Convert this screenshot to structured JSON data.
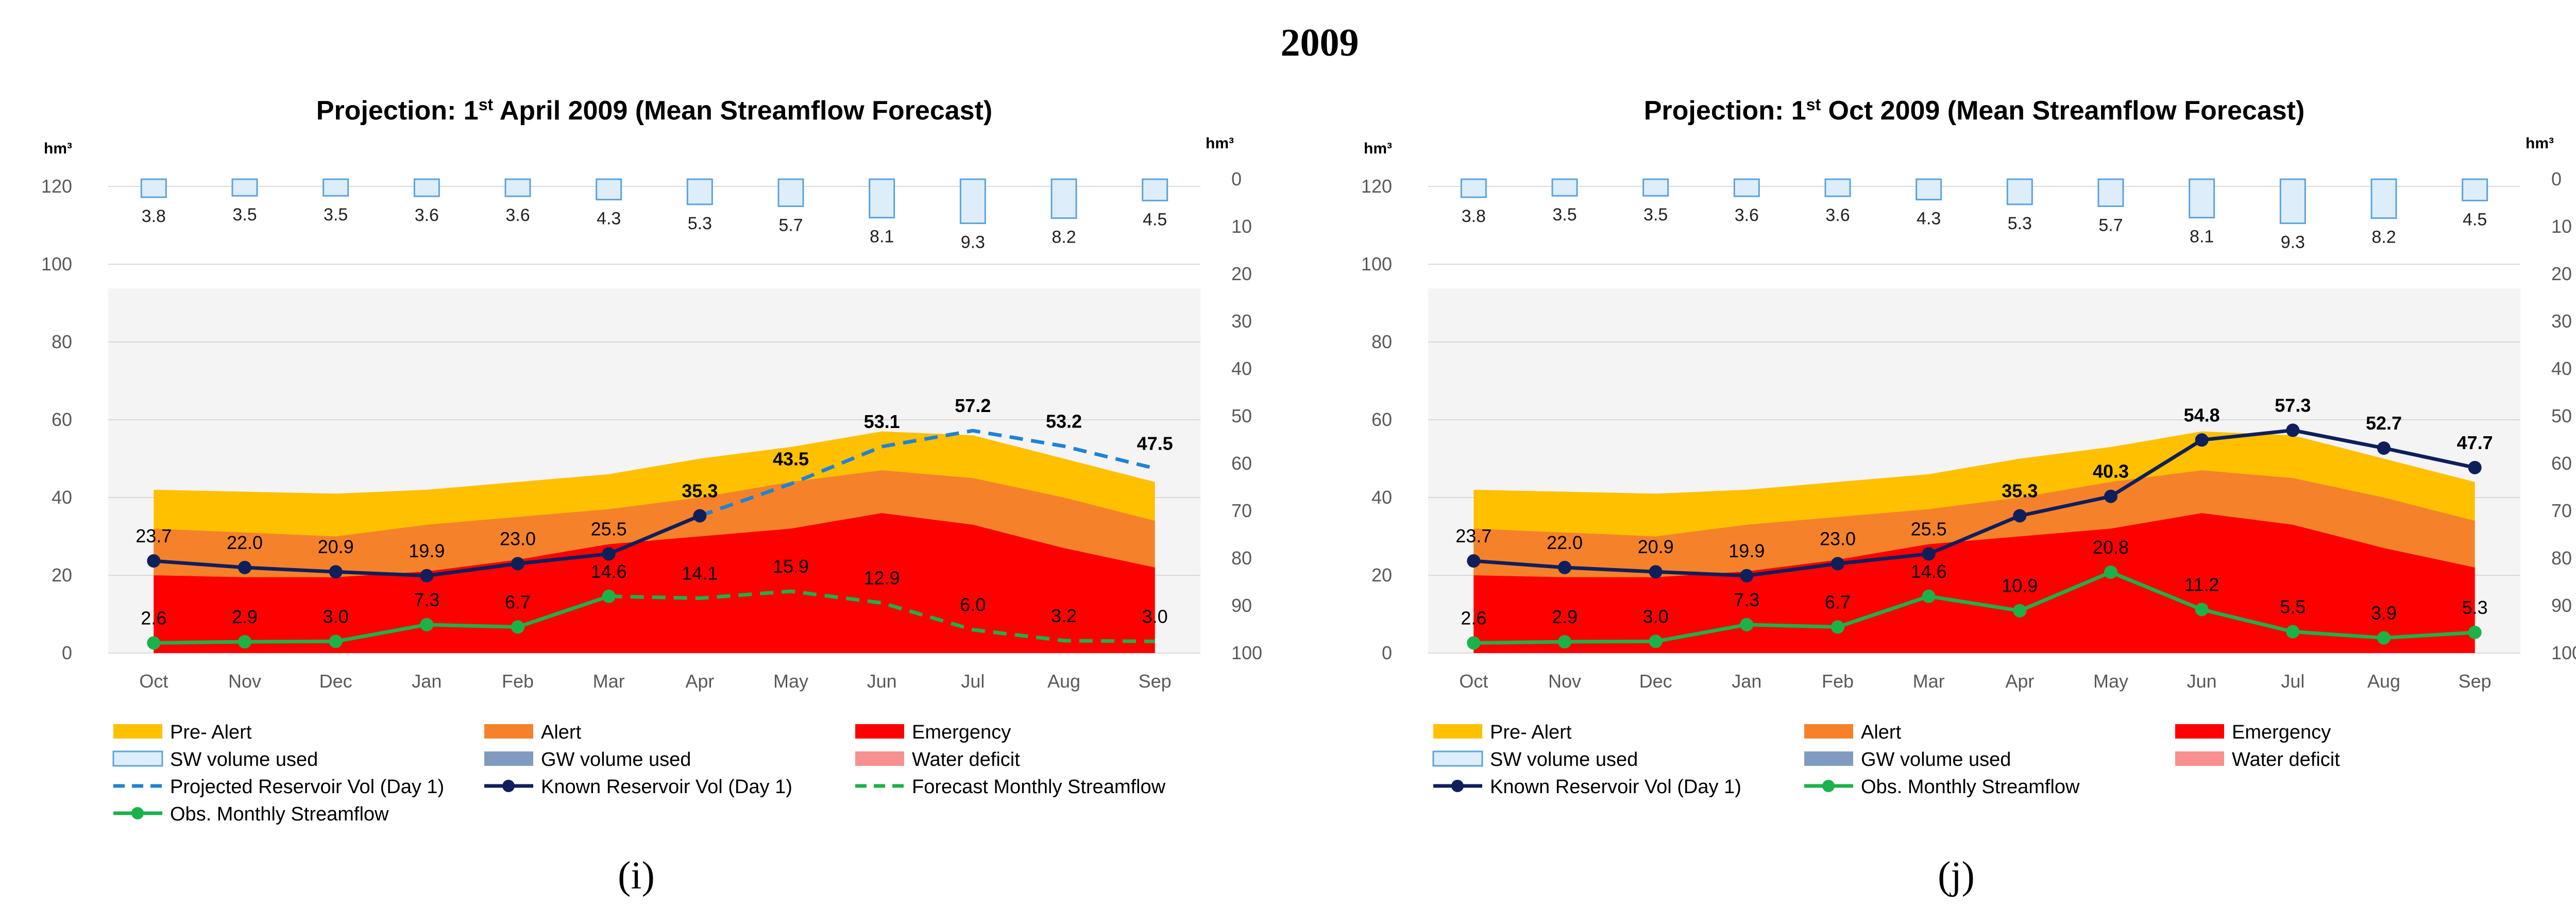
{
  "figure_title": "2009",
  "colors": {
    "pre_alert": "#FFC000",
    "alert": "#F5822A",
    "emergency": "#FF0000",
    "sw_fill": "#DDEEFA",
    "sw_stroke": "#5BA3DC",
    "gw": "#7F9CC0",
    "deficit": "#F89090",
    "known_res": "#0F1F5C",
    "projected_res": "#1F83D4",
    "streamflow": "#1BB24A",
    "plot_bg": "#F4F4F4"
  },
  "chart_data": [
    {
      "panel_label": "(i)",
      "type": "composite",
      "title_prefix": "Projection: 1",
      "title_sup": "st",
      "title_suffix": " April 2009 (Mean Streamflow Forecast)",
      "left_unit": "hm³",
      "right_unit": "hm³",
      "categories": [
        "Oct",
        "Nov",
        "Dec",
        "Jan",
        "Feb",
        "Mar",
        "Apr",
        "May",
        "Jun",
        "Jul",
        "Aug",
        "Sep"
      ],
      "ylim_left": [
        0,
        120
      ],
      "yticks_left": [
        0,
        20,
        40,
        60,
        80,
        100,
        120
      ],
      "ylim_right": [
        100,
        0
      ],
      "yticks_right": [
        0,
        10,
        20,
        30,
        40,
        50,
        60,
        70,
        80,
        90,
        100
      ],
      "threshold_areas": {
        "emergency": [
          20,
          19.5,
          19.5,
          21,
          24,
          28,
          30,
          32,
          36,
          33,
          27,
          22
        ],
        "alert": [
          32,
          31,
          30,
          33,
          35,
          37,
          40,
          44,
          47,
          45,
          40,
          34
        ],
        "pre_alert": [
          42,
          41.5,
          41,
          42,
          44,
          46,
          50,
          53,
          57,
          56,
          50,
          44
        ]
      },
      "sw_volume_used": [
        3.8,
        3.5,
        3.5,
        3.6,
        3.6,
        4.3,
        5.3,
        5.7,
        8.1,
        9.3,
        8.2,
        4.5
      ],
      "known_reservoir_vol": [
        23.7,
        22.0,
        20.9,
        19.9,
        23.0,
        25.5,
        35.3,
        null,
        null,
        null,
        null,
        null
      ],
      "projected_reservoir_vol": [
        null,
        null,
        null,
        null,
        null,
        null,
        35.3,
        43.5,
        53.1,
        57.2,
        53.2,
        47.5
      ],
      "obs_monthly_streamflow": [
        2.6,
        2.9,
        3.0,
        7.3,
        6.7,
        14.6,
        null,
        null,
        null,
        null,
        null,
        null
      ],
      "forecast_monthly_streamflow": [
        null,
        null,
        null,
        null,
        null,
        14.6,
        14.1,
        15.9,
        12.9,
        6.0,
        3.2,
        3.0
      ],
      "reservoir_labels": [
        "23.7",
        "22.0",
        "20.9",
        "19.9",
        "23.0",
        "25.5",
        "35.3",
        "43.5",
        "53.1",
        "57.2",
        "53.2",
        "47.5"
      ],
      "streamflow_labels": [
        "2.6",
        "2.9",
        "3.0",
        "7.3",
        "6.7",
        "14.6",
        "14.1",
        "15.9",
        "12.9",
        "6.0",
        "3.2",
        "3.0"
      ],
      "sw_labels": [
        "3.8",
        "3.5",
        "3.5",
        "3.6",
        "3.6",
        "4.3",
        "5.3",
        "5.7",
        "8.1",
        "9.3",
        "8.2",
        "4.5"
      ],
      "legend": [
        "Pre- Alert",
        "Alert",
        "Emergency",
        "SW volume used",
        "GW volume used",
        "Water deficit",
        "Projected Reservoir Vol (Day 1)",
        "Known Reservoir Vol (Day 1)",
        "Forecast Monthly Streamflow",
        "Obs. Monthly Streamflow"
      ]
    },
    {
      "panel_label": "(j)",
      "type": "composite",
      "title_prefix": "Projection: 1",
      "title_sup": "st",
      "title_suffix": " Oct 2009 (Mean Streamflow Forecast)",
      "left_unit": "hm³",
      "right_unit": "hm³",
      "categories": [
        "Oct",
        "Nov",
        "Dec",
        "Jan",
        "Feb",
        "Mar",
        "Apr",
        "May",
        "Jun",
        "Jul",
        "Aug",
        "Sep"
      ],
      "ylim_left": [
        0,
        120
      ],
      "yticks_left": [
        0,
        20,
        40,
        60,
        80,
        100,
        120
      ],
      "ylim_right": [
        100,
        0
      ],
      "yticks_right": [
        0,
        10,
        20,
        30,
        40,
        50,
        60,
        70,
        80,
        90,
        100
      ],
      "threshold_areas": {
        "emergency": [
          20,
          19.5,
          19.5,
          21,
          24,
          28,
          30,
          32,
          36,
          33,
          27,
          22
        ],
        "alert": [
          32,
          31,
          30,
          33,
          35,
          37,
          40,
          44,
          47,
          45,
          40,
          34
        ],
        "pre_alert": [
          42,
          41.5,
          41,
          42,
          44,
          46,
          50,
          53,
          57,
          56,
          50,
          44
        ]
      },
      "sw_volume_used": [
        3.8,
        3.5,
        3.5,
        3.6,
        3.6,
        4.3,
        5.3,
        5.7,
        8.1,
        9.3,
        8.2,
        4.5
      ],
      "known_reservoir_vol": [
        23.7,
        22.0,
        20.9,
        19.9,
        23.0,
        25.5,
        35.3,
        40.3,
        54.8,
        57.3,
        52.7,
        47.7
      ],
      "projected_reservoir_vol": [],
      "obs_monthly_streamflow": [
        2.6,
        2.9,
        3.0,
        7.3,
        6.7,
        14.6,
        10.9,
        20.8,
        11.2,
        5.5,
        3.9,
        5.3
      ],
      "forecast_monthly_streamflow": [],
      "reservoir_labels": [
        "23.7",
        "22.0",
        "20.9",
        "19.9",
        "23.0",
        "25.5",
        "35.3",
        "40.3",
        "54.8",
        "57.3",
        "52.7",
        "47.7"
      ],
      "streamflow_labels": [
        "2.6",
        "2.9",
        "3.0",
        "7.3",
        "6.7",
        "14.6",
        "10.9",
        "20.8",
        "11.2",
        "5.5",
        "3.9",
        "5.3"
      ],
      "sw_labels": [
        "3.8",
        "3.5",
        "3.5",
        "3.6",
        "3.6",
        "4.3",
        "5.3",
        "5.7",
        "8.1",
        "9.3",
        "8.2",
        "4.5"
      ],
      "legend": [
        "Pre- Alert",
        "Alert",
        "Emergency",
        "SW volume used",
        "GW volume used",
        "Water deficit",
        "Known Reservoir Vol (Day 1)",
        "Obs. Monthly Streamflow"
      ]
    }
  ]
}
